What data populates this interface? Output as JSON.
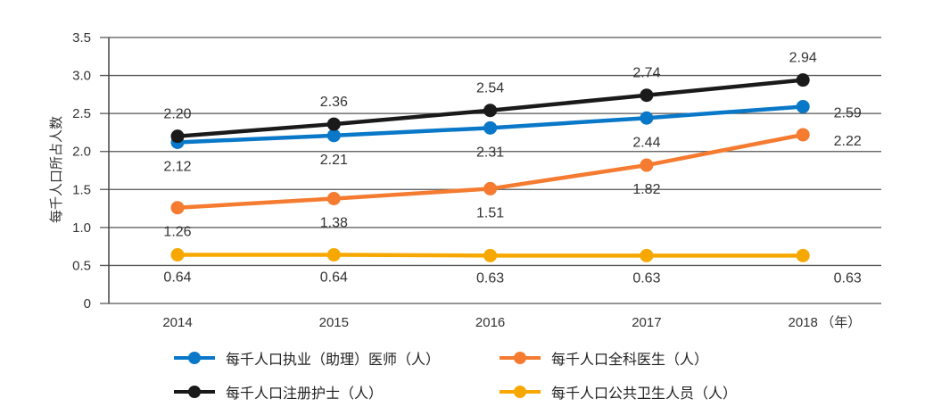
{
  "chart_data": {
    "type": "line",
    "categories": [
      "2014",
      "2015",
      "2016",
      "2017",
      "2018"
    ],
    "x_unit_suffix": "（年）",
    "ylabel": "每千人口所占人数",
    "ylim": [
      0,
      3.5
    ],
    "yticks": [
      "0",
      "0.5",
      "1.0",
      "1.5",
      "2.0",
      "2.5",
      "3.0",
      "3.5"
    ],
    "grid": true,
    "legend_placement": "bottom",
    "series": [
      {
        "name": "每千人口执业（助理）医师（人）",
        "color": "#0a78c8",
        "values": [
          2.12,
          2.21,
          2.31,
          2.44,
          2.59
        ],
        "labels": [
          "2.12",
          "2.21",
          "2.31",
          "2.44",
          "2.59"
        ]
      },
      {
        "name": "每千人口全科医生（人）",
        "color": "#f47b30",
        "values": [
          1.26,
          1.38,
          1.51,
          1.82,
          2.22
        ],
        "labels": [
          "1.26",
          "1.38",
          "1.51",
          "1.82",
          "2.22"
        ]
      },
      {
        "name": "每千人口注册护士（人）",
        "color": "#1a1a1a",
        "values": [
          2.2,
          2.36,
          2.54,
          2.74,
          2.94
        ],
        "labels": [
          "2.20",
          "2.36",
          "2.54",
          "2.74",
          "2.94"
        ]
      },
      {
        "name": "每千人口公共卫生人员（人）",
        "color": "#f7a800",
        "values": [
          0.64,
          0.64,
          0.63,
          0.63,
          0.63
        ],
        "labels": [
          "0.64",
          "0.64",
          "0.63",
          "0.63",
          "0.63"
        ]
      }
    ]
  }
}
